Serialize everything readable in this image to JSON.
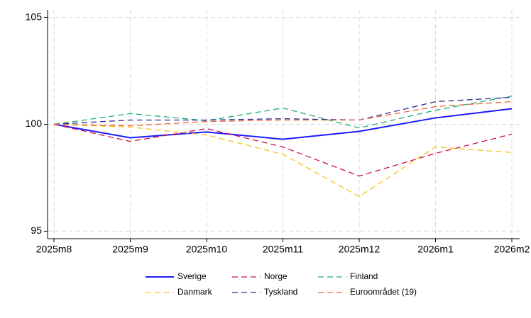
{
  "chart_data": {
    "type": "line",
    "categories": [
      "2025m8",
      "2025m9",
      "2025m10",
      "2025m11",
      "2025m12",
      "2026m1",
      "2026m2"
    ],
    "series": [
      {
        "name": "Sverige",
        "color": "#1a1aff",
        "style": "solid",
        "values": [
          100,
          99.37,
          99.64,
          99.3,
          99.67,
          100.3,
          100.73
        ]
      },
      {
        "name": "Norge",
        "color": "#d0104c",
        "style": "dashed",
        "values": [
          100,
          99.2,
          99.8,
          98.94,
          97.58,
          98.64,
          99.54
        ]
      },
      {
        "name": "Finland",
        "color": "#1aaf7a",
        "style": "dashed",
        "values": [
          100,
          100.5,
          100.17,
          100.76,
          99.83,
          100.66,
          101.32
        ]
      },
      {
        "name": "Danmark",
        "color": "#f5c518",
        "style": "dashed",
        "values": [
          100,
          99.87,
          99.5,
          98.6,
          96.62,
          98.94,
          98.68
        ]
      },
      {
        "name": "Tyskland",
        "color": "#2e2d8f",
        "style": "dashed",
        "values": [
          100,
          100.2,
          100.2,
          100.26,
          100.2,
          101.06,
          101.26
        ]
      },
      {
        "name": "Euroområdet (19)",
        "color": "#f0643c",
        "style": "dashed",
        "values": [
          100,
          99.93,
          100.13,
          100.2,
          100.2,
          100.83,
          101.06
        ]
      }
    ],
    "ylim": [
      94.65,
      105.35
    ],
    "yticks": [
      95,
      100,
      105
    ],
    "grid": true,
    "legend": "bottom"
  }
}
